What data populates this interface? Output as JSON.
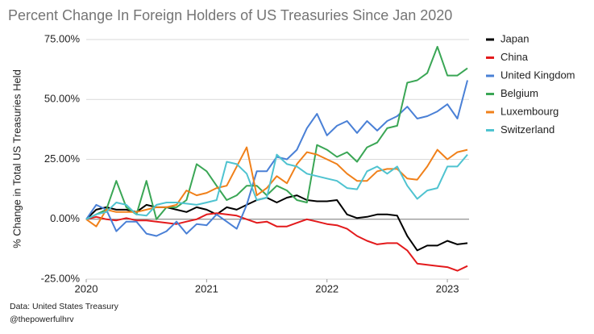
{
  "chart_data": {
    "type": "line",
    "title": "Percent Change In Foreign Holders of US Treasuries Since Jan 2020",
    "y_label": "% Change in Total US Treasuries Held",
    "source": "Data: United States Treasury",
    "credit": "@thepowerfulhrv",
    "x": [
      2020,
      2020.083,
      2020.167,
      2020.25,
      2020.333,
      2020.417,
      2020.5,
      2020.583,
      2020.667,
      2020.75,
      2020.833,
      2020.917,
      2021,
      2021.083,
      2021.167,
      2021.25,
      2021.333,
      2021.417,
      2021.5,
      2021.583,
      2021.667,
      2021.75,
      2021.833,
      2021.917,
      2022,
      2022.083,
      2022.167,
      2022.25,
      2022.333,
      2022.417,
      2022.5,
      2022.583,
      2022.667,
      2022.75,
      2022.833,
      2022.917,
      2023,
      2023.083,
      2023.167
    ],
    "xlim": [
      2020,
      2023.167
    ],
    "xticks": [
      2020,
      2021,
      2022,
      2023
    ],
    "ylim": [
      -25,
      75
    ],
    "yticks": [
      {
        "value": -25,
        "label": "-25.00%"
      },
      {
        "value": 0,
        "label": "0.00%"
      },
      {
        "value": 25,
        "label": "25.00%"
      },
      {
        "value": 50,
        "label": "50.00%"
      },
      {
        "value": 75,
        "label": "75.00%"
      }
    ],
    "grid": true,
    "legend": "right",
    "series": [
      {
        "name": "Japan",
        "color": "#000000",
        "values": [
          0,
          4,
          5,
          4,
          4,
          3,
          6,
          5,
          5,
          4,
          3,
          5,
          4,
          2,
          5,
          4,
          6,
          8,
          9,
          7,
          9,
          10,
          8,
          7.5,
          7.5,
          8,
          2,
          0.5,
          1,
          2,
          2,
          1.5,
          -7,
          -13,
          -11,
          -11,
          -9,
          -10.5,
          -10
        ]
      },
      {
        "name": "China",
        "color": "#e31a1c",
        "values": [
          0,
          1,
          0,
          -0.5,
          0.5,
          -0.5,
          -0.5,
          -1,
          -1.5,
          -2,
          -1,
          0,
          2,
          2.5,
          2,
          1.5,
          0,
          -1.5,
          -1,
          -3,
          -3,
          -1.5,
          0,
          -1,
          -2,
          -2.5,
          -4,
          -7,
          -9,
          -10.5,
          -10,
          -10,
          -13,
          -18.5,
          -19,
          -19.5,
          -20,
          -21.5,
          -19.5
        ]
      },
      {
        "name": "United Kingdom",
        "color": "#4a80d6",
        "values": [
          0,
          6,
          4,
          -5,
          -1,
          -1,
          -6,
          -7,
          -5,
          -1,
          -6,
          -2,
          -2.5,
          2,
          -1,
          -4,
          6,
          20,
          20,
          26,
          25,
          29,
          38,
          44,
          35,
          39,
          41,
          36,
          41,
          37,
          41,
          43,
          47,
          42,
          43,
          45,
          48,
          42,
          58
        ]
      },
      {
        "name": "Belgium",
        "color": "#3aa655",
        "values": [
          0,
          2,
          4,
          16,
          5,
          2,
          16,
          0,
          5,
          5,
          8,
          23,
          20,
          14,
          8,
          10,
          14,
          14,
          10,
          14,
          12,
          8,
          7,
          31,
          29,
          26,
          28,
          24,
          30,
          32,
          38,
          39,
          57,
          58,
          61,
          72,
          60,
          60,
          63
        ]
      },
      {
        "name": "Luxembourg",
        "color": "#f0801a",
        "values": [
          0,
          -3,
          4,
          3,
          3,
          3,
          4,
          5,
          5,
          6,
          12,
          10,
          11,
          13,
          14,
          22,
          30,
          10,
          13,
          18,
          15,
          23,
          28,
          27,
          25,
          23,
          19,
          16,
          16,
          20,
          21,
          21,
          17,
          16.5,
          22,
          29,
          25,
          28,
          29
        ]
      },
      {
        "name": "Switzerland",
        "color": "#4fc3d0",
        "values": [
          0,
          2,
          3,
          7,
          6,
          2,
          1.5,
          6,
          7,
          7,
          6.5,
          6,
          7,
          8,
          24,
          23,
          19,
          8,
          9,
          27,
          23,
          22,
          19,
          18,
          17,
          16,
          13,
          12.5,
          20,
          22,
          19,
          22,
          14,
          8.5,
          12,
          13,
          22,
          22,
          27
        ]
      }
    ]
  }
}
